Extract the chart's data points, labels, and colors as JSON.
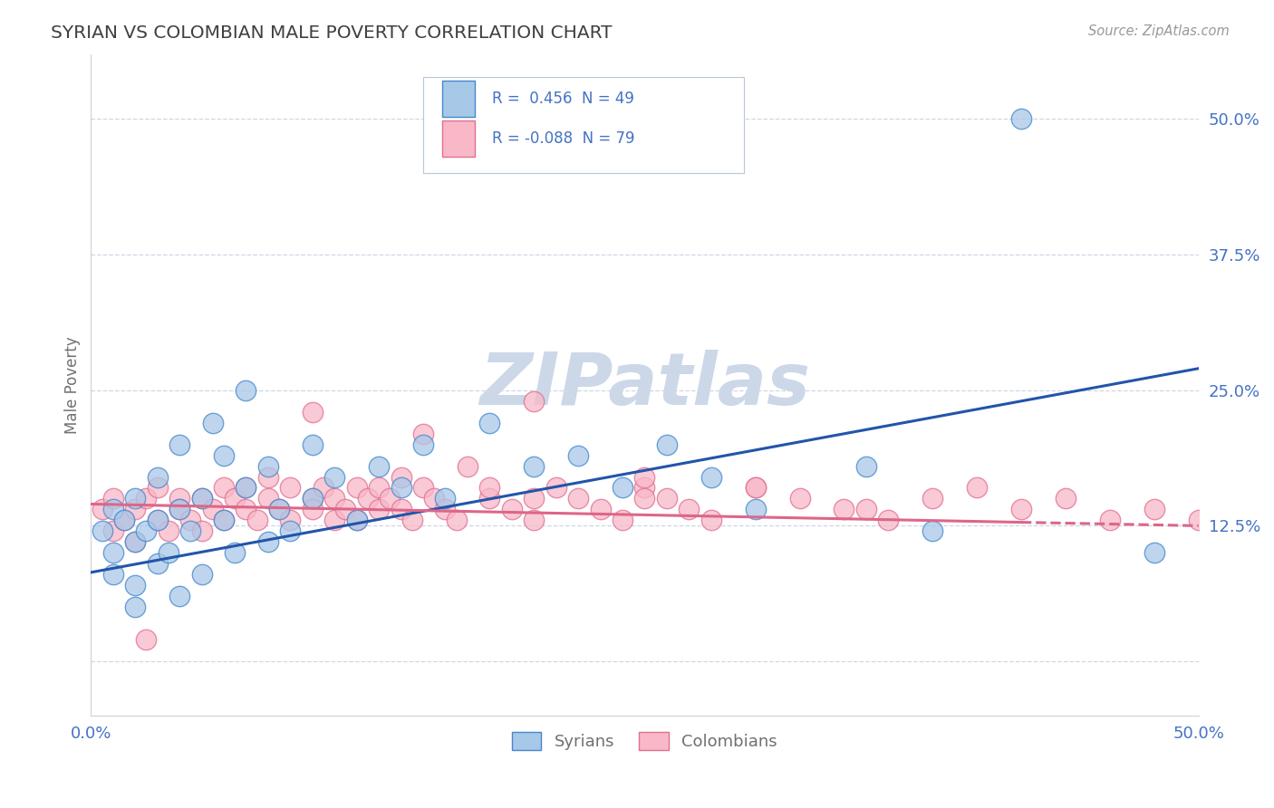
{
  "title": "SYRIAN VS COLOMBIAN MALE POVERTY CORRELATION CHART",
  "source": "Source: ZipAtlas.com",
  "ylabel": "Male Poverty",
  "xmin": 0.0,
  "xmax": 0.5,
  "ymin": -0.05,
  "ymax": 0.56,
  "yticks": [
    0.0,
    0.125,
    0.25,
    0.375,
    0.5
  ],
  "ytick_labels": [
    "",
    "12.5%",
    "25.0%",
    "37.5%",
    "50.0%"
  ],
  "xticks": [
    0.0,
    0.125,
    0.25,
    0.375,
    0.5
  ],
  "xtick_labels": [
    "0.0%",
    "",
    "",
    "",
    "50.0%"
  ],
  "syrian_fill": "#a8c8e8",
  "syrian_edge": "#4488cc",
  "colombian_fill": "#f8b8c8",
  "colombian_edge": "#e07090",
  "syrian_line_color": "#2255aa",
  "colombian_line_color": "#dd6688",
  "syrian_R": 0.456,
  "syrian_N": 49,
  "colombian_R": -0.088,
  "colombian_N": 79,
  "watermark": "ZIPatlas",
  "watermark_color": "#ccd8e8",
  "legend_label_syrian": "Syrians",
  "legend_label_colombian": "Colombians",
  "title_color": "#404040",
  "axis_label_color": "#707070",
  "tick_color": "#4472c4",
  "grid_color": "#c8d4e4",
  "syrians_x": [
    0.005,
    0.01,
    0.01,
    0.01,
    0.015,
    0.02,
    0.02,
    0.02,
    0.02,
    0.025,
    0.03,
    0.03,
    0.03,
    0.035,
    0.04,
    0.04,
    0.04,
    0.045,
    0.05,
    0.05,
    0.055,
    0.06,
    0.06,
    0.065,
    0.07,
    0.07,
    0.08,
    0.08,
    0.085,
    0.09,
    0.1,
    0.1,
    0.11,
    0.12,
    0.13,
    0.14,
    0.15,
    0.16,
    0.18,
    0.2,
    0.22,
    0.24,
    0.26,
    0.28,
    0.3,
    0.35,
    0.38,
    0.42,
    0.48
  ],
  "syrians_y": [
    0.12,
    0.14,
    0.1,
    0.08,
    0.13,
    0.15,
    0.11,
    0.07,
    0.05,
    0.12,
    0.13,
    0.09,
    0.17,
    0.1,
    0.14,
    0.06,
    0.2,
    0.12,
    0.15,
    0.08,
    0.22,
    0.13,
    0.19,
    0.1,
    0.16,
    0.25,
    0.11,
    0.18,
    0.14,
    0.12,
    0.15,
    0.2,
    0.17,
    0.13,
    0.18,
    0.16,
    0.2,
    0.15,
    0.22,
    0.18,
    0.19,
    0.16,
    0.2,
    0.17,
    0.14,
    0.18,
    0.12,
    0.5,
    0.1
  ],
  "colombians_x": [
    0.005,
    0.01,
    0.01,
    0.015,
    0.02,
    0.02,
    0.025,
    0.03,
    0.03,
    0.035,
    0.04,
    0.04,
    0.045,
    0.05,
    0.05,
    0.055,
    0.06,
    0.06,
    0.065,
    0.07,
    0.07,
    0.075,
    0.08,
    0.08,
    0.085,
    0.09,
    0.09,
    0.1,
    0.1,
    0.105,
    0.11,
    0.11,
    0.115,
    0.12,
    0.12,
    0.125,
    0.13,
    0.13,
    0.135,
    0.14,
    0.14,
    0.145,
    0.15,
    0.155,
    0.16,
    0.165,
    0.17,
    0.18,
    0.18,
    0.19,
    0.2,
    0.2,
    0.21,
    0.22,
    0.23,
    0.24,
    0.25,
    0.26,
    0.27,
    0.28,
    0.3,
    0.32,
    0.34,
    0.36,
    0.38,
    0.4,
    0.42,
    0.44,
    0.46,
    0.48,
    0.1,
    0.15,
    0.2,
    0.25,
    0.3,
    0.35,
    0.025,
    0.5,
    0.25
  ],
  "colombians_y": [
    0.14,
    0.15,
    0.12,
    0.13,
    0.14,
    0.11,
    0.15,
    0.13,
    0.16,
    0.12,
    0.15,
    0.14,
    0.13,
    0.15,
    0.12,
    0.14,
    0.16,
    0.13,
    0.15,
    0.14,
    0.16,
    0.13,
    0.15,
    0.17,
    0.14,
    0.13,
    0.16,
    0.15,
    0.14,
    0.16,
    0.13,
    0.15,
    0.14,
    0.16,
    0.13,
    0.15,
    0.14,
    0.16,
    0.15,
    0.14,
    0.17,
    0.13,
    0.16,
    0.15,
    0.14,
    0.13,
    0.18,
    0.15,
    0.16,
    0.14,
    0.15,
    0.13,
    0.16,
    0.15,
    0.14,
    0.13,
    0.16,
    0.15,
    0.14,
    0.13,
    0.16,
    0.15,
    0.14,
    0.13,
    0.15,
    0.16,
    0.14,
    0.15,
    0.13,
    0.14,
    0.23,
    0.21,
    0.24,
    0.17,
    0.16,
    0.14,
    0.02,
    0.13,
    0.15
  ]
}
